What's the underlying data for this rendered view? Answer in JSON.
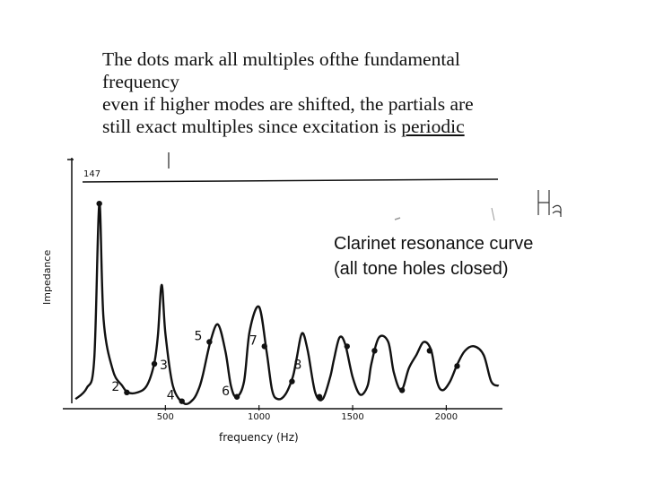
{
  "caption": {
    "line1": "The dots mark all multiples ofthe fundamental",
    "line2": "frequency",
    "line3": "even if higher modes are shifted, the partials are",
    "line4_prefix": "still exact multiples since excitation is ",
    "line4_underlined": "periodic"
  },
  "chart_data": {
    "type": "line",
    "title": "Clarinet resonance curve",
    "subtitle": "(all tone holes closed)",
    "ylabel": "Impedance",
    "xlabel": "frequency (Hz)",
    "x_ticks": [
      500,
      1000,
      1500,
      2000
    ],
    "xlim": [
      0,
      2300
    ],
    "y_tick_label": "147",
    "ylim": [
      0,
      100
    ],
    "grid": false,
    "series": [
      {
        "x": [
          20,
          80,
          120,
          147,
          170,
          220,
          270,
          300,
          350,
          400,
          440,
          460,
          480,
          500,
          540,
          600,
          650,
          680,
          700,
          740,
          780,
          820,
          850,
          880,
          920,
          950,
          1000,
          1040,
          1070,
          1100,
          1140,
          1180,
          1200,
          1230,
          1260,
          1300,
          1340,
          1380,
          1400,
          1430,
          1460,
          1500,
          1540,
          1580,
          1600,
          1640,
          1690,
          1720,
          1760,
          1800,
          1840,
          1880,
          1920,
          1950,
          1980,
          2020,
          2060,
          2100,
          2150,
          2200,
          2240,
          2280
        ],
        "y": [
          4,
          9,
          22,
          93,
          40,
          17,
          10,
          7,
          7,
          10,
          20,
          33,
          56,
          34,
          10,
          2,
          4,
          9,
          15,
          30,
          38,
          26,
          10,
          5,
          12,
          35,
          46,
          26,
          8,
          4,
          6,
          14,
          22,
          34,
          26,
          7,
          4,
          14,
          22,
          32,
          29,
          14,
          6,
          10,
          20,
          32,
          30,
          16,
          8,
          18,
          24,
          30,
          26,
          12,
          8,
          12,
          20,
          26,
          28,
          24,
          12,
          10
        ]
      }
    ],
    "harmonic_markers": [
      {
        "x": 147,
        "y": 93,
        "label": ""
      },
      {
        "x": 294,
        "y": 7,
        "label": "2"
      },
      {
        "x": 441,
        "y": 20,
        "label": "3"
      },
      {
        "x": 588,
        "y": 3,
        "label": "4"
      },
      {
        "x": 735,
        "y": 30,
        "label": "5"
      },
      {
        "x": 882,
        "y": 5,
        "label": "6"
      },
      {
        "x": 1029,
        "y": 28,
        "label": "7"
      },
      {
        "x": 1176,
        "y": 12,
        "label": "8"
      },
      {
        "x": 1323,
        "y": 5,
        "label": ""
      },
      {
        "x": 1470,
        "y": 28,
        "label": ""
      },
      {
        "x": 1617,
        "y": 26,
        "label": ""
      },
      {
        "x": 1764,
        "y": 8,
        "label": ""
      },
      {
        "x": 1911,
        "y": 26,
        "label": ""
      },
      {
        "x": 2058,
        "y": 19,
        "label": ""
      }
    ]
  }
}
